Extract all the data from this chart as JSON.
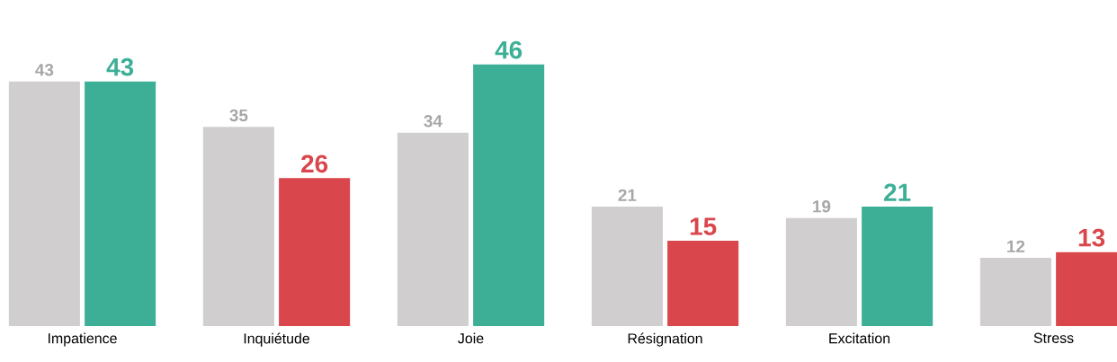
{
  "chart_data": {
    "type": "bar",
    "data_labels": true,
    "categories": [
      "Impatience",
      "Inquiétude",
      "Joie",
      "Résignation",
      "Excitation",
      "Stress"
    ],
    "series": [
      {
        "color": "#d0cece",
        "values": [
          43,
          35,
          34,
          21,
          19,
          12
        ]
      },
      {
        "colors": [
          "#3daf96",
          "#d9464b",
          "#3daf96",
          "#d9464b",
          "#3daf96",
          "#d9464b"
        ],
        "values": [
          43,
          26,
          46,
          15,
          21,
          13
        ]
      }
    ]
  }
}
